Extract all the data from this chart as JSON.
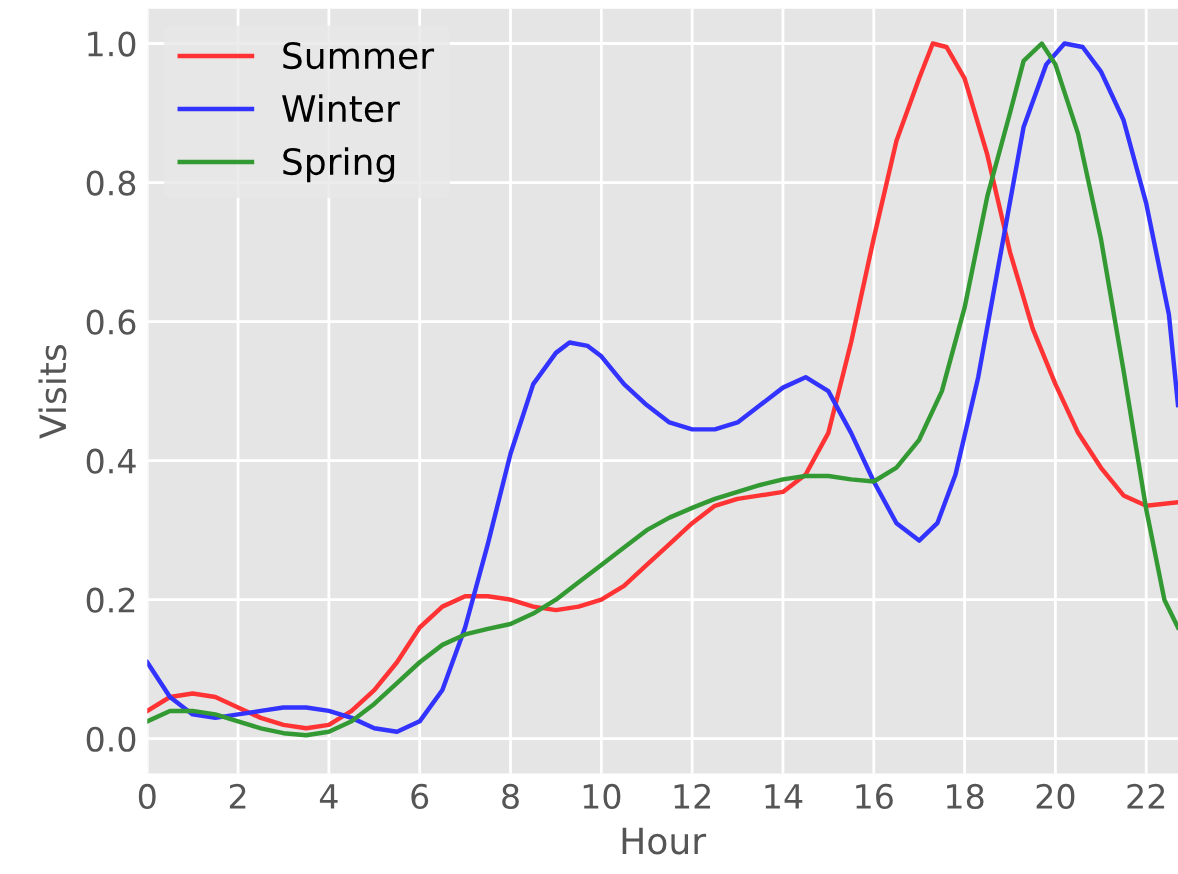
{
  "chart_data": {
    "type": "line",
    "xlabel": "Hour",
    "ylabel": "Visits",
    "xlim": [
      0,
      22.7
    ],
    "ylim": [
      -0.05,
      1.05
    ],
    "xticks": [
      0,
      2,
      4,
      6,
      8,
      10,
      12,
      14,
      16,
      18,
      20,
      22
    ],
    "yticks": [
      {
        "value": 0,
        "label": "0.0"
      },
      {
        "value": 0.2,
        "label": "0.2"
      },
      {
        "value": 0.4,
        "label": "0.4"
      },
      {
        "value": 0.6,
        "label": "0.6"
      },
      {
        "value": 0.8,
        "label": "0.8"
      },
      {
        "value": 1.0,
        "label": "1.0"
      }
    ],
    "grid": true,
    "legend": "top left",
    "line_style": "solid",
    "marker": "none",
    "series": [
      {
        "name": "Summer",
        "color": "#ff3333",
        "x": [
          0,
          0.5,
          1,
          1.5,
          2,
          2.5,
          3,
          3.5,
          4,
          4.5,
          5,
          5.5,
          6,
          6.5,
          7,
          7.5,
          8,
          8.5,
          9,
          9.5,
          10,
          10.5,
          11,
          11.5,
          12,
          12.5,
          13,
          13.5,
          14,
          14.5,
          15,
          15.5,
          16,
          16.5,
          17,
          17.3,
          17.6,
          18,
          18.5,
          19,
          19.5,
          20,
          20.5,
          21,
          21.5,
          22,
          22.7
        ],
        "values": [
          0.04,
          0.06,
          0.065,
          0.06,
          0.045,
          0.03,
          0.02,
          0.015,
          0.02,
          0.04,
          0.07,
          0.11,
          0.16,
          0.19,
          0.205,
          0.205,
          0.2,
          0.19,
          0.185,
          0.19,
          0.2,
          0.22,
          0.25,
          0.28,
          0.31,
          0.335,
          0.345,
          0.35,
          0.355,
          0.38,
          0.44,
          0.57,
          0.72,
          0.86,
          0.95,
          1.0,
          0.995,
          0.95,
          0.84,
          0.7,
          0.59,
          0.51,
          0.44,
          0.39,
          0.35,
          0.335,
          0.34
        ]
      },
      {
        "name": "Winter",
        "color": "#3333ff",
        "x": [
          0,
          0.5,
          1,
          1.5,
          2,
          2.5,
          3,
          3.5,
          4,
          4.5,
          5,
          5.5,
          6,
          6.5,
          7,
          7.5,
          8,
          8.5,
          9,
          9.3,
          9.7,
          10,
          10.5,
          11,
          11.5,
          12,
          12.5,
          13,
          13.5,
          14,
          14.5,
          15,
          15.5,
          16,
          16.5,
          17,
          17.4,
          17.8,
          18.3,
          18.8,
          19.3,
          19.8,
          20.2,
          20.6,
          21,
          21.5,
          22,
          22.5,
          22.7
        ],
        "values": [
          0.11,
          0.06,
          0.035,
          0.03,
          0.035,
          0.04,
          0.045,
          0.045,
          0.04,
          0.03,
          0.015,
          0.01,
          0.025,
          0.07,
          0.16,
          0.28,
          0.41,
          0.51,
          0.555,
          0.57,
          0.565,
          0.55,
          0.51,
          0.48,
          0.455,
          0.445,
          0.445,
          0.455,
          0.48,
          0.505,
          0.52,
          0.5,
          0.44,
          0.37,
          0.31,
          0.285,
          0.31,
          0.38,
          0.52,
          0.7,
          0.88,
          0.97,
          1.0,
          0.995,
          0.96,
          0.89,
          0.77,
          0.61,
          0.48
        ]
      },
      {
        "name": "Spring",
        "color": "#339933",
        "x": [
          0,
          0.5,
          1,
          1.5,
          2,
          2.5,
          3,
          3.5,
          4,
          4.5,
          5,
          5.5,
          6,
          6.5,
          7,
          7.5,
          8,
          8.5,
          9,
          9.5,
          10,
          10.5,
          11,
          11.5,
          12,
          12.5,
          13,
          13.5,
          14,
          14.5,
          15,
          15.5,
          16,
          16.5,
          17,
          17.5,
          18,
          18.5,
          19,
          19.3,
          19.7,
          20,
          20.5,
          21,
          21.5,
          22,
          22.4,
          22.7
        ],
        "values": [
          0.025,
          0.04,
          0.04,
          0.035,
          0.025,
          0.015,
          0.008,
          0.005,
          0.01,
          0.025,
          0.05,
          0.08,
          0.11,
          0.135,
          0.15,
          0.158,
          0.165,
          0.18,
          0.2,
          0.225,
          0.25,
          0.275,
          0.3,
          0.318,
          0.332,
          0.345,
          0.355,
          0.365,
          0.373,
          0.378,
          0.378,
          0.373,
          0.37,
          0.39,
          0.43,
          0.5,
          0.62,
          0.78,
          0.9,
          0.975,
          1.0,
          0.97,
          0.87,
          0.72,
          0.53,
          0.33,
          0.2,
          0.16
        ]
      }
    ]
  }
}
